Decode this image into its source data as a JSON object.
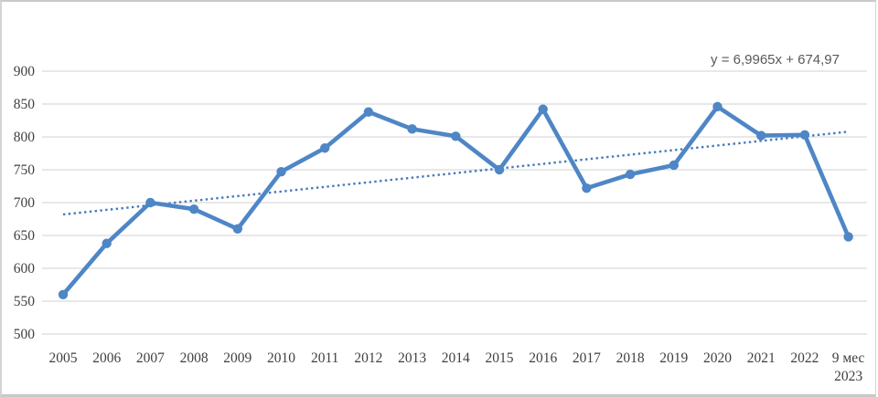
{
  "chart_data": {
    "type": "line",
    "title": "",
    "categories": [
      "2005",
      "2006",
      "2007",
      "2008",
      "2009",
      "2010",
      "2011",
      "2012",
      "2013",
      "2014",
      "2015",
      "2016",
      "2017",
      "2018",
      "2019",
      "2020",
      "2021",
      "2022",
      "9 мес\n2023"
    ],
    "series": [
      {
        "name": "",
        "values": [
          560,
          638,
          700,
          690,
          660,
          747,
          783,
          838,
          812,
          801,
          750,
          842,
          722,
          743,
          757,
          846,
          802,
          803,
          648
        ]
      }
    ],
    "trendline": {
      "equation_label": "y = 6,9965x + 674,97",
      "slope": 6.9965,
      "intercept": 674.97,
      "style": "dotted"
    },
    "ylim": [
      500,
      900
    ],
    "yticks": [
      500,
      550,
      600,
      650,
      700,
      750,
      800,
      850,
      900
    ],
    "grid": "horizontal",
    "legend": "none",
    "colors": {
      "line": "#4E86C6",
      "marker": "#4E86C6",
      "trendline": "#4678BC",
      "gridline": "#D9D9D9",
      "tick_label": "#404040",
      "equation": "#595959"
    }
  }
}
